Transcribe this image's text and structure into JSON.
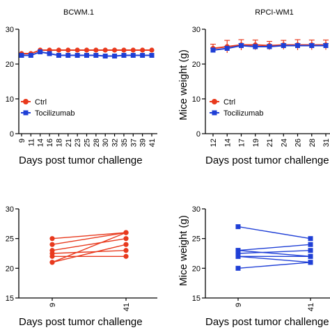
{
  "colors": {
    "ctrl": "#e8391d",
    "toci": "#1f3fd6",
    "axis": "#000000"
  },
  "chart_data": [
    {
      "type": "line",
      "title": "BCWM.1",
      "xlabel": "Days post tumor challenge",
      "ylabel": "",
      "ylim": [
        0,
        30
      ],
      "yticks": [
        "0",
        "10",
        "20",
        "30"
      ],
      "categories": [
        "9",
        "11",
        "14",
        "16",
        "18",
        "21",
        "23",
        "25",
        "28",
        "30",
        "32",
        "35",
        "37",
        "39",
        "41"
      ],
      "legend": {
        "placement": "center-left",
        "entries": [
          "Ctrl",
          "Tocilizumab"
        ]
      },
      "series": [
        {
          "name": "Ctrl",
          "marker": "circle",
          "values": [
            23,
            23,
            24,
            24,
            24,
            24,
            24,
            24,
            24,
            24,
            24,
            24,
            24,
            24,
            24
          ]
        },
        {
          "name": "Tocilizumab",
          "marker": "square",
          "values": [
            22.5,
            22.5,
            23.5,
            23,
            22.5,
            22.5,
            22.5,
            22.5,
            22.5,
            22.3,
            22.3,
            22.5,
            22.5,
            22.5,
            22.5
          ]
        }
      ]
    },
    {
      "type": "line",
      "title": "RPCI-WM1",
      "xlabel": "Days post tumor challenge",
      "ylabel": "Mice weight (g)",
      "ylim": [
        0,
        30
      ],
      "yticks": [
        "0",
        "10",
        "20",
        "30"
      ],
      "categories": [
        "12",
        "14",
        "17",
        "19",
        "21",
        "24",
        "26",
        "28",
        "31"
      ],
      "legend": {
        "placement": "center-left",
        "entries": [
          "Ctrl",
          "Tocilizumab"
        ]
      },
      "series": [
        {
          "name": "Ctrl",
          "marker": "circle",
          "values": [
            24.5,
            25,
            25.5,
            25.5,
            25.3,
            25.5,
            25.5,
            25.5,
            25.5
          ],
          "error": [
            1.2,
            1.8,
            1.5,
            1.4,
            1.2,
            1.3,
            1.5,
            1.4,
            1.4
          ]
        },
        {
          "name": "Tocilizumab",
          "marker": "square",
          "values": [
            24,
            24.5,
            25.3,
            25,
            25,
            25.3,
            25.3,
            25.3,
            25.3
          ],
          "error": [
            0.6,
            0.6,
            0.6,
            0.6,
            0.6,
            0.6,
            0.6,
            0.6,
            0.6
          ]
        }
      ]
    },
    {
      "type": "line",
      "title": "",
      "xlabel": "Days post tumor challenge",
      "ylabel": "",
      "ylim": [
        15,
        30
      ],
      "yticks": [
        "15",
        "20",
        "25",
        "30"
      ],
      "categories": [
        "9",
        "41"
      ],
      "paired": [
        [
          21,
          24
        ],
        [
          22,
          22
        ],
        [
          22.5,
          23
        ],
        [
          23,
          25
        ],
        [
          24,
          26
        ],
        [
          25,
          26
        ],
        [
          21,
          26
        ]
      ]
    },
    {
      "type": "line",
      "title": "",
      "xlabel": "Days post tumor challenge",
      "ylabel": "Mice weight (g)",
      "ylim": [
        15,
        30
      ],
      "yticks": [
        "15",
        "20",
        "25",
        "30"
      ],
      "categories": [
        "9",
        "41"
      ],
      "paired": [
        [
          27,
          25
        ],
        [
          23,
          24
        ],
        [
          23,
          22
        ],
        [
          22.5,
          23
        ],
        [
          22,
          22
        ],
        [
          22,
          21
        ],
        [
          20,
          21
        ]
      ]
    }
  ]
}
